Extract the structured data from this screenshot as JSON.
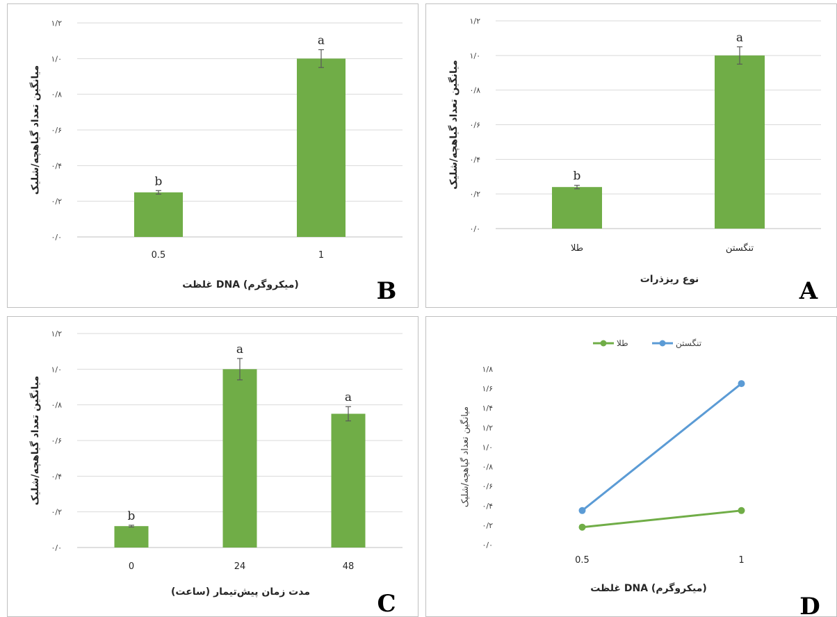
{
  "chart_data": [
    {
      "id": "B",
      "type": "bar",
      "panel_label": "B",
      "categories": [
        "0.5",
        "1"
      ],
      "values": [
        0.25,
        1.0
      ],
      "errors": [
        0.01,
        0.05
      ],
      "significance": [
        "b",
        "a"
      ],
      "xlabel": "غلظت DNA  (میکروگرم)",
      "ylabel": "میانگین تعداد گیاهچه/شلیک",
      "ylim": [
        0,
        1.2
      ],
      "yticks": [
        "۰/۰",
        "۰/۲",
        "۰/۴",
        "۰/۶",
        "۰/۸",
        "۱/۰",
        "۱/۲"
      ],
      "bar_color": "#70ad47",
      "grid": true
    },
    {
      "id": "A",
      "type": "bar",
      "panel_label": "A",
      "categories": [
        "طلا",
        "تنگستن"
      ],
      "values": [
        0.24,
        1.0
      ],
      "errors": [
        0.01,
        0.05
      ],
      "significance": [
        "b",
        "a"
      ],
      "xlabel": "نوع ریزذرات",
      "ylabel": "میانگین تعداد گیاهچه/شلیک",
      "ylim": [
        0,
        1.2
      ],
      "yticks": [
        "۰/۰",
        "۰/۲",
        "۰/۴",
        "۰/۶",
        "۰/۸",
        "۱/۰",
        "۱/۲"
      ],
      "bar_color": "#70ad47",
      "grid": true
    },
    {
      "id": "C",
      "type": "bar",
      "panel_label": "C",
      "categories": [
        "0",
        "24",
        "48"
      ],
      "values": [
        0.12,
        1.0,
        0.75
      ],
      "errors": [
        0.005,
        0.06,
        0.04
      ],
      "significance": [
        "b",
        "a",
        "a"
      ],
      "xlabel": "مدت زمان پیش‌تیمار (ساعت)",
      "ylabel": "میانگین تعداد گیاهچه/شلیک",
      "ylim": [
        0,
        1.2
      ],
      "yticks": [
        "۰/۰",
        "۰/۲",
        "۰/۴",
        "۰/۶",
        "۰/۸",
        "۱/۰",
        "۱/۲"
      ],
      "bar_color": "#70ad47",
      "grid": true
    },
    {
      "id": "D",
      "type": "line",
      "panel_label": "D",
      "x": [
        "0.5",
        "1"
      ],
      "series": [
        {
          "name": "تنگستن",
          "values": [
            0.35,
            1.65
          ],
          "color": "#5b9bd5"
        },
        {
          "name": "طلا",
          "values": [
            0.18,
            0.35
          ],
          "color": "#70ad47"
        }
      ],
      "xlabel": "غلظت DNA  (میکروگرم)",
      "ylabel": "میانگین تعداد گیاهچه/شلیک",
      "ylim": [
        0,
        1.8
      ],
      "yticks": [
        "۰/۰",
        "۰/۲",
        "۰/۴",
        "۰/۶",
        "۰/۸",
        "۱/۰",
        "۱/۲",
        "۱/۴",
        "۱/۶",
        "۱/۸"
      ],
      "legend_position": "top",
      "grid": false
    }
  ]
}
